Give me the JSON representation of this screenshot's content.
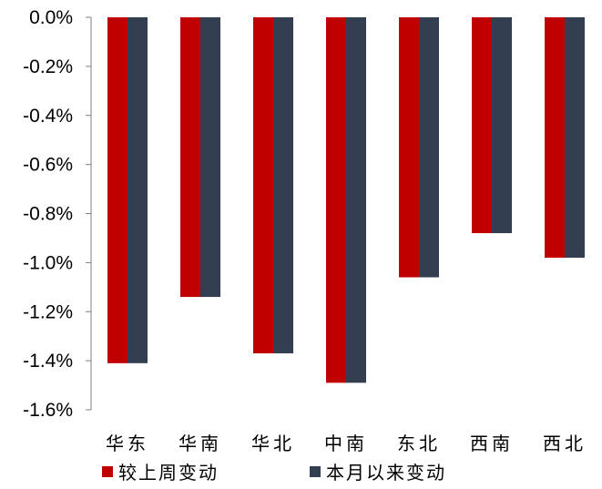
{
  "chart_data": {
    "type": "bar",
    "categories": [
      "华东",
      "华南",
      "华北",
      "中南",
      "东北",
      "西南",
      "西北"
    ],
    "series": [
      {
        "name": "较上周变动",
        "color": "#c00000",
        "values": [
          -1.41,
          -1.14,
          -1.37,
          -1.49,
          -1.06,
          -0.88,
          -0.98
        ]
      },
      {
        "name": "本月以来变动",
        "color": "#333f50",
        "values": [
          -1.41,
          -1.14,
          -1.37,
          -1.49,
          -1.06,
          -0.88,
          -0.98
        ]
      }
    ],
    "title": "",
    "xlabel": "",
    "ylabel": "",
    "ylim": [
      -1.6,
      0.0
    ],
    "yticks": [
      "0.0%",
      "-0.2%",
      "-0.4%",
      "-0.6%",
      "-0.8%",
      "-1.0%",
      "-1.2%",
      "-1.4%",
      "-1.6%"
    ],
    "grid": false,
    "legend": "bottom"
  }
}
